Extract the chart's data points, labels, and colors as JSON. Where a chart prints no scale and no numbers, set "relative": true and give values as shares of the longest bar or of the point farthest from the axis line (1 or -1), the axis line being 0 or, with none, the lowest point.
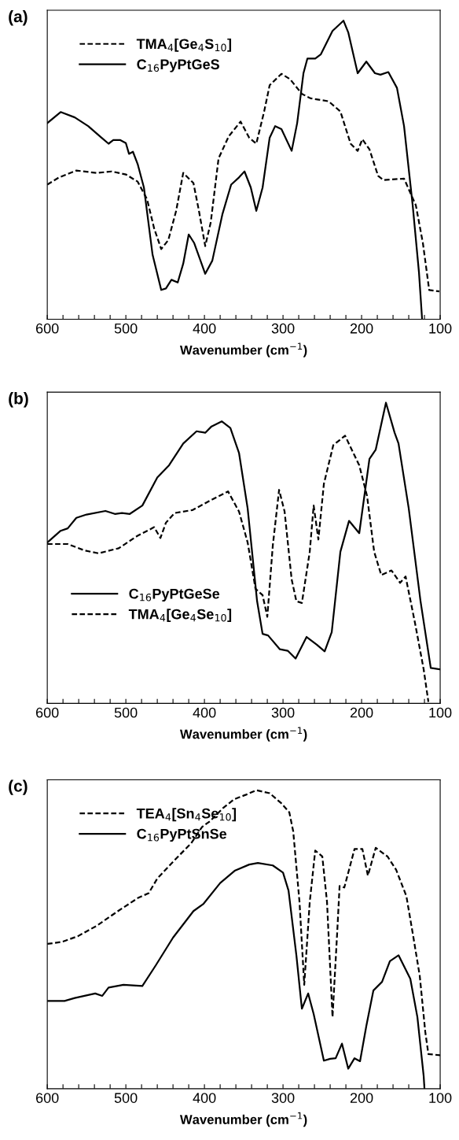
{
  "chart_data": [
    {
      "type": "line",
      "title": "(a)",
      "xlabel": "Wavenumber (cm$^{−1}$)",
      "relative": true,
      "legend": "top left",
      "grid": false,
      "xlim": [
        600,
        100
      ],
      "xticks": [
        600,
        {
          "value": 580,
          "label": null
        },
        {
          "value": 560,
          "label": null
        },
        {
          "value": 540,
          "label": null
        },
        {
          "value": 520,
          "label": null
        },
        500,
        {
          "value": 480,
          "label": null
        },
        {
          "value": 460,
          "label": null
        },
        {
          "value": 440,
          "label": null
        },
        {
          "value": 420,
          "label": null
        },
        400,
        {
          "value": 380,
          "label": null
        },
        {
          "value": 360,
          "label": null
        },
        {
          "value": 340,
          "label": null
        },
        {
          "value": 320,
          "label": null
        },
        300,
        {
          "value": 280,
          "label": null
        },
        {
          "value": 260,
          "label": null
        },
        {
          "value": 240,
          "label": null
        },
        {
          "value": 220,
          "label": null
        },
        200,
        {
          "value": 180,
          "label": null
        },
        {
          "value": 160,
          "label": null
        },
        {
          "value": 140,
          "label": null
        },
        {
          "value": 120,
          "label": null
        },
        100
      ],
      "series": [
        {
          "name": "TMA$_{4}$[Ge$_{4}$S$_{10}$]",
          "color": "#000000",
          "line_style": "dashed",
          "x": [
            600,
            585,
            563,
            537,
            518,
            500,
            485,
            473,
            464,
            455,
            446,
            436,
            427,
            414,
            407,
            399,
            392,
            382,
            369,
            354,
            343,
            334,
            324,
            317,
            302,
            291,
            276,
            265,
            242,
            227,
            214,
            205,
            199,
            190,
            179,
            172,
            146,
            131,
            122,
            114,
            101
          ],
          "values": [
            0.451,
            0.475,
            0.498,
            0.49,
            0.495,
            0.485,
            0.461,
            0.402,
            0.304,
            0.235,
            0.265,
            0.363,
            0.49,
            0.456,
            0.363,
            0.245,
            0.324,
            0.539,
            0.613,
            0.662,
            0.608,
            0.588,
            0.696,
            0.784,
            0.822,
            0.804,
            0.755,
            0.74,
            0.73,
            0.696,
            0.588,
            0.564,
            0.603,
            0.569,
            0.48,
            0.466,
            0.471,
            0.382,
            0.255,
            0.098,
            0.093
          ]
        },
        {
          "name": "C$_{16}$PyPtGeS",
          "color": "#000000",
          "line_style": "solid",
          "x": [
            600,
            583,
            565,
            548,
            531,
            522,
            516,
            507,
            500,
            496,
            491,
            485,
            477,
            466,
            455,
            449,
            442,
            434,
            427,
            420,
            413,
            399,
            390,
            377,
            366,
            356,
            349,
            341,
            334,
            326,
            317,
            310,
            302,
            289,
            282,
            274,
            269,
            259,
            252,
            237,
            223,
            217,
            205,
            194,
            183,
            176,
            166,
            155,
            146,
            135,
            127,
            123
          ],
          "values": [
            0.657,
            0.694,
            0.676,
            0.647,
            0.608,
            0.588,
            0.6,
            0.6,
            0.59,
            0.554,
            0.561,
            0.52,
            0.441,
            0.216,
            0.098,
            0.103,
            0.132,
            0.123,
            0.186,
            0.284,
            0.255,
            0.152,
            0.196,
            0.353,
            0.451,
            0.475,
            0.495,
            0.441,
            0.363,
            0.441,
            0.608,
            0.647,
            0.637,
            0.564,
            0.657,
            0.824,
            0.873,
            0.873,
            0.887,
            0.966,
            1.0,
            0.961,
            0.824,
            0.863,
            0.824,
            0.819,
            0.828,
            0.775,
            0.647,
            0.382,
            0.157,
            0.0
          ]
        }
      ]
    },
    {
      "type": "line",
      "title": "(b)",
      "xlabel": "Wavenumber (cm$^{−1}$)",
      "relative": true,
      "legend": "bottom left",
      "grid": false,
      "xlim": [
        600,
        100
      ],
      "xticks": [
        600,
        {
          "value": 580,
          "label": null
        },
        {
          "value": 560,
          "label": null
        },
        {
          "value": 540,
          "label": null
        },
        {
          "value": 520,
          "label": null
        },
        500,
        {
          "value": 480,
          "label": null
        },
        {
          "value": 460,
          "label": null
        },
        {
          "value": 440,
          "label": null
        },
        {
          "value": 420,
          "label": null
        },
        400,
        {
          "value": 380,
          "label": null
        },
        {
          "value": 360,
          "label": null
        },
        {
          "value": 340,
          "label": null
        },
        {
          "value": 320,
          "label": null
        },
        300,
        {
          "value": 280,
          "label": null
        },
        {
          "value": 260,
          "label": null
        },
        {
          "value": 240,
          "label": null
        },
        {
          "value": 220,
          "label": null
        },
        200,
        {
          "value": 180,
          "label": null
        },
        {
          "value": 160,
          "label": null
        },
        {
          "value": 140,
          "label": null
        },
        {
          "value": 120,
          "label": null
        },
        100
      ],
      "series": [
        {
          "name": "C$_{16}$PyPtGeSe",
          "color": "#000000",
          "line_style": "solid",
          "x": [
            600,
            583,
            574,
            563,
            550,
            526,
            514,
            505,
            495,
            479,
            460,
            445,
            427,
            410,
            399,
            391,
            378,
            367,
            356,
            345,
            333,
            326,
            319,
            304,
            294,
            284,
            270,
            257,
            247,
            238,
            227,
            216,
            203,
            190,
            182,
            169,
            158,
            153,
            140,
            125,
            112,
            100
          ],
          "values": [
            0.535,
            0.574,
            0.582,
            0.617,
            0.628,
            0.64,
            0.63,
            0.633,
            0.63,
            0.658,
            0.751,
            0.792,
            0.864,
            0.905,
            0.9,
            0.921,
            0.938,
            0.916,
            0.833,
            0.648,
            0.34,
            0.231,
            0.226,
            0.18,
            0.175,
            0.149,
            0.221,
            0.195,
            0.173,
            0.237,
            0.504,
            0.607,
            0.566,
            0.813,
            0.844,
            1.0,
            0.9,
            0.864,
            0.648,
            0.34,
            0.118,
            0.113
          ]
        },
        {
          "name": "TMA$_{4}$[Ge$_{4}$Se$_{10}$]",
          "color": "#000000",
          "line_style": "dashed",
          "x": [
            600,
            574,
            553,
            535,
            509,
            486,
            464,
            456,
            449,
            438,
            415,
            393,
            370,
            356,
            345,
            335,
            326,
            320,
            313,
            305,
            298,
            289,
            283,
            276,
            266,
            261,
            255,
            248,
            236,
            221,
            203,
            193,
            184,
            175,
            162,
            151,
            144,
            132,
            121,
            115
          ],
          "values": [
            0.53,
            0.53,
            0.509,
            0.499,
            0.516,
            0.556,
            0.586,
            0.55,
            0.601,
            0.633,
            0.643,
            0.674,
            0.705,
            0.638,
            0.535,
            0.381,
            0.36,
            0.288,
            0.525,
            0.71,
            0.638,
            0.412,
            0.34,
            0.334,
            0.504,
            0.658,
            0.545,
            0.73,
            0.859,
            0.89,
            0.792,
            0.689,
            0.504,
            0.427,
            0.442,
            0.401,
            0.422,
            0.267,
            0.113,
            0.005
          ]
        }
      ]
    },
    {
      "type": "line",
      "title": "(c)",
      "xlabel": "Wavenumber (cm$^{−1}$)",
      "relative": true,
      "legend": "top left",
      "grid": false,
      "xlim": [
        600,
        100
      ],
      "xticks": [
        600,
        {
          "value": 580,
          "label": null
        },
        {
          "value": 560,
          "label": null
        },
        {
          "value": 540,
          "label": null
        },
        {
          "value": 520,
          "label": null
        },
        500,
        {
          "value": 480,
          "label": null
        },
        {
          "value": 460,
          "label": null
        },
        {
          "value": 440,
          "label": null
        },
        {
          "value": 420,
          "label": null
        },
        400,
        {
          "value": 380,
          "label": null
        },
        {
          "value": 360,
          "label": null
        },
        {
          "value": 340,
          "label": null
        },
        {
          "value": 320,
          "label": null
        },
        300,
        {
          "value": 280,
          "label": null
        },
        {
          "value": 260,
          "label": null
        },
        {
          "value": 240,
          "label": null
        },
        {
          "value": 220,
          "label": null
        },
        200,
        {
          "value": 180,
          "label": null
        },
        {
          "value": 160,
          "label": null
        },
        {
          "value": 140,
          "label": null
        },
        {
          "value": 120,
          "label": null
        },
        100
      ],
      "series": [
        {
          "name": "TEA$_{4}$[Sn$_{4}$Se$_{10}$]",
          "color": "#000000",
          "line_style": "dashed",
          "x": [
            600,
            581,
            561,
            537,
            510,
            484,
            471,
            460,
            439,
            417,
            403,
            393,
            376,
            362,
            347,
            334,
            317,
            302,
            292,
            287,
            279,
            273,
            266,
            259,
            250,
            244,
            237,
            231,
            228,
            222,
            209,
            199,
            192,
            182,
            167,
            156,
            143,
            134,
            126,
            119,
            115,
            100
          ],
          "values": [
            0.485,
            0.492,
            0.511,
            0.546,
            0.595,
            0.64,
            0.655,
            0.704,
            0.763,
            0.822,
            0.877,
            0.896,
            0.941,
            0.97,
            0.985,
            1.0,
            0.99,
            0.956,
            0.926,
            0.862,
            0.625,
            0.348,
            0.625,
            0.798,
            0.778,
            0.625,
            0.24,
            0.526,
            0.679,
            0.674,
            0.803,
            0.803,
            0.714,
            0.807,
            0.778,
            0.733,
            0.645,
            0.506,
            0.378,
            0.191,
            0.116,
            0.112
          ]
        },
        {
          "name": "C$_{16}$PyPtSnSe",
          "color": "#000000",
          "line_style": "solid",
          "x": [
            600,
            578,
            565,
            539,
            530,
            522,
            503,
            479,
            462,
            440,
            414,
            401,
            380,
            361,
            343,
            332,
            313,
            300,
            293,
            283,
            276,
            268,
            261,
            248,
            240,
            233,
            225,
            217,
            209,
            202,
            194,
            185,
            174,
            164,
            153,
            138,
            129,
            121,
            120
          ],
          "values": [
            0.294,
            0.294,
            0.304,
            0.319,
            0.311,
            0.339,
            0.348,
            0.344,
            0.413,
            0.506,
            0.595,
            0.62,
            0.689,
            0.731,
            0.751,
            0.756,
            0.748,
            0.724,
            0.664,
            0.447,
            0.268,
            0.319,
            0.25,
            0.094,
            0.1,
            0.102,
            0.151,
            0.067,
            0.102,
            0.092,
            0.21,
            0.329,
            0.358,
            0.427,
            0.447,
            0.368,
            0.24,
            0.042,
            0.0
          ]
        }
      ]
    }
  ]
}
